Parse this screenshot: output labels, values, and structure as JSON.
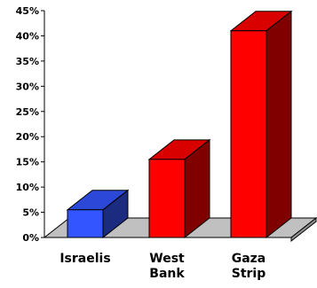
{
  "chart_data": {
    "type": "bar",
    "categories": [
      "Israelis",
      "West Bank",
      "Gaza Strip"
    ],
    "category_lines": [
      [
        "Israelis"
      ],
      [
        "West",
        "Bank"
      ],
      [
        "Gaza",
        "Strip"
      ]
    ],
    "values": [
      5.5,
      15.5,
      41
    ],
    "ylim": [
      0,
      45
    ],
    "yticks": [
      "0%",
      "5%",
      "10%",
      "15%",
      "20%",
      "25%",
      "30%",
      "35%",
      "40%",
      "45%"
    ],
    "grid": false,
    "title": "",
    "xlabel": "",
    "ylabel": "",
    "colors": [
      "#3355ff",
      "#ff0000",
      "#ff0000"
    ]
  }
}
